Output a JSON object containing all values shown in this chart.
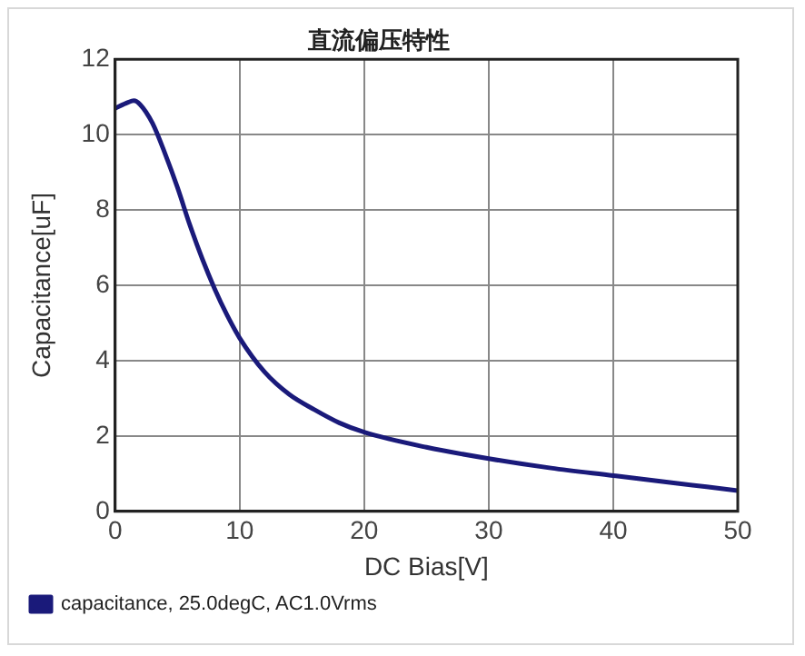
{
  "chart_data": {
    "type": "line",
    "title": "直流偏压特性",
    "xlabel": "DC Bias[V]",
    "ylabel": "Capacitance[uF]",
    "xlim": [
      0,
      50
    ],
    "xticks": [
      0,
      10,
      20,
      30,
      40,
      50
    ],
    "ylim": [
      0,
      12
    ],
    "yticks": [
      0,
      2,
      4,
      6,
      8,
      10,
      12
    ],
    "grid": true,
    "legend": "bottom left",
    "marker": "none",
    "line_style": "solid",
    "series": [
      {
        "name": "capacitance, 25.0degC, AC1.0Vrms",
        "color": "#1a1a7a",
        "x": [
          0,
          1,
          1.5,
          2,
          3,
          4,
          5,
          6,
          7,
          8,
          9,
          10,
          12,
          14,
          16,
          18,
          20,
          25,
          30,
          35,
          40,
          45,
          50
        ],
        "values": [
          10.7,
          10.85,
          10.9,
          10.8,
          10.3,
          9.5,
          8.6,
          7.6,
          6.7,
          5.9,
          5.2,
          4.6,
          3.7,
          3.1,
          2.7,
          2.35,
          2.1,
          1.7,
          1.4,
          1.15,
          0.95,
          0.75,
          0.55
        ]
      }
    ]
  }
}
